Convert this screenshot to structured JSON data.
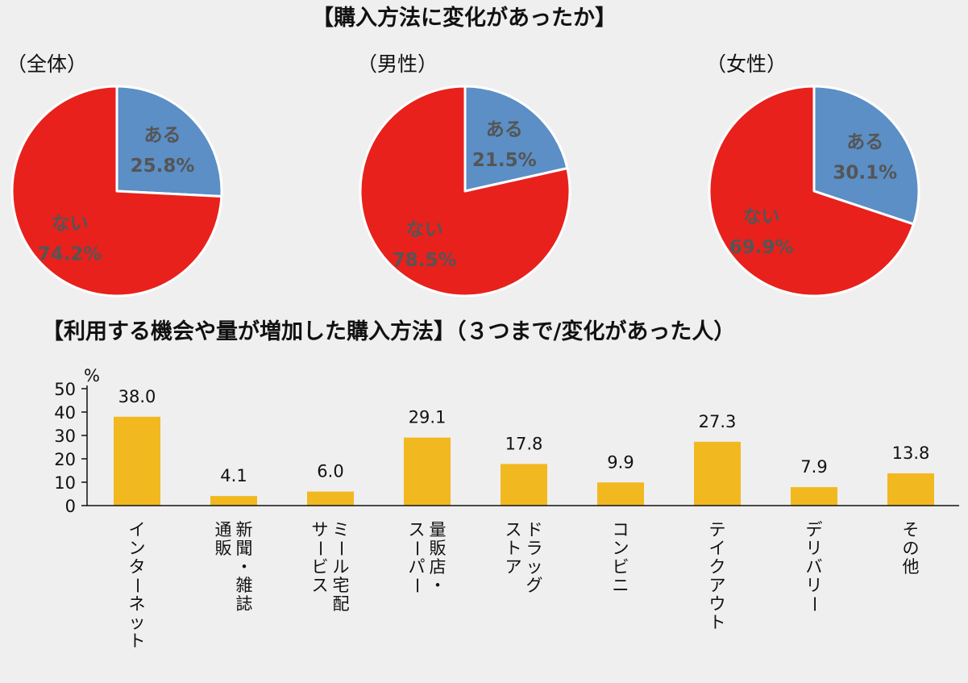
{
  "chart_data": [
    {
      "type": "pie",
      "title": "【購入方法に変化があったか】",
      "pies": [
        {
          "subtitle": "（全体）",
          "slices": [
            {
              "label": "ある",
              "value": 25.8,
              "display": "25.8%",
              "color": "#5b8fc6"
            },
            {
              "label": "ない",
              "value": 74.2,
              "display": "74.2%",
              "color": "#e8211c"
            }
          ]
        },
        {
          "subtitle": "（男性）",
          "slices": [
            {
              "label": "ある",
              "value": 21.5,
              "display": "21.5%",
              "color": "#5b8fc6"
            },
            {
              "label": "ない",
              "value": 78.5,
              "display": "78.5%",
              "color": "#e8211c"
            }
          ]
        },
        {
          "subtitle": "（女性）",
          "slices": [
            {
              "label": "ある",
              "value": 30.1,
              "display": "30.1%",
              "color": "#5b8fc6"
            },
            {
              "label": "ない",
              "value": 69.9,
              "display": "69.9%",
              "color": "#e8211c"
            }
          ]
        }
      ]
    },
    {
      "type": "bar",
      "title": "【利用する機会や量が増加した購入方法】（３つまで/変化があった人）",
      "ylabel": "%",
      "ylim": [
        0,
        50
      ],
      "yticks": [
        0,
        10,
        20,
        30,
        40,
        50
      ],
      "grid": false,
      "bar_color": "#f2b820",
      "categories": [
        [
          "インターネット"
        ],
        [
          "新聞・雑誌",
          "通販"
        ],
        [
          "ミール宅配",
          "サービス"
        ],
        [
          "量販店・",
          "スーパー"
        ],
        [
          "ドラッグ",
          "ストア"
        ],
        [
          "コンビニ"
        ],
        [
          "テイクアウト"
        ],
        [
          "デリバリー"
        ],
        [
          "その他"
        ]
      ],
      "values": [
        38.0,
        4.1,
        6.0,
        29.1,
        17.8,
        9.9,
        27.3,
        7.9,
        13.8
      ],
      "value_labels": [
        "38.0",
        "4.1",
        "6.0",
        "29.1",
        "17.8",
        "9.9",
        "27.3",
        "7.9",
        "13.8"
      ]
    }
  ]
}
